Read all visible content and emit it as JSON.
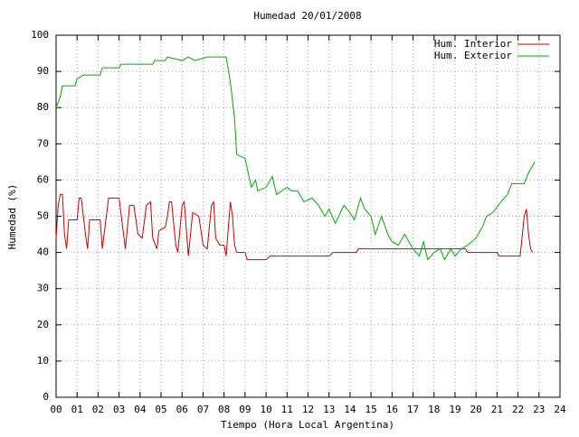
{
  "chart_data": {
    "type": "line",
    "title": "Humedad 20/01/2008",
    "x_label": "Tiempo (Hora Local Argentina)",
    "y_label": "Humedad (%)",
    "xlim": [
      0,
      24
    ],
    "ylim": [
      0,
      100
    ],
    "xticks": [
      {
        "value": 0,
        "label": "00"
      },
      {
        "value": 1,
        "label": "01"
      },
      {
        "value": 2,
        "label": "02"
      },
      {
        "value": 3,
        "label": "03"
      },
      {
        "value": 4,
        "label": "04"
      },
      {
        "value": 5,
        "label": "05"
      },
      {
        "value": 6,
        "label": "06"
      },
      {
        "value": 7,
        "label": "07"
      },
      {
        "value": 8,
        "label": "08"
      },
      {
        "value": 9,
        "label": "09"
      },
      10,
      11,
      12,
      13,
      14,
      15,
      16,
      17,
      18,
      19,
      20,
      21,
      22,
      23,
      24
    ],
    "yticks": [
      0,
      10,
      20,
      30,
      40,
      50,
      60,
      70,
      80,
      90,
      100
    ],
    "grid": true,
    "legend": "top-right",
    "series": [
      {
        "name": "Hum. Interior",
        "color": "#cc0000",
        "x": [
          0,
          0.1,
          0.2,
          0.3,
          0.4,
          0.5,
          0.6,
          1.0,
          1.1,
          1.2,
          1.4,
          1.5,
          1.6,
          2.1,
          2.2,
          2.5,
          3.0,
          3.3,
          3.5,
          3.7,
          3.9,
          4.1,
          4.3,
          4.5,
          4.6,
          4.8,
          4.9,
          5.2,
          5.3,
          5.4,
          5.5,
          5.7,
          5.8,
          6.0,
          6.1,
          6.3,
          6.5,
          6.8,
          7.0,
          7.2,
          7.4,
          7.5,
          7.6,
          7.8,
          8.0,
          8.1,
          8.3,
          8.4,
          8.5,
          8.6,
          9.0,
          9.1,
          10.0,
          10.2,
          13.0,
          13.2,
          14.3,
          14.4,
          19.5,
          19.6,
          21.0,
          21.1,
          22.1,
          22.3,
          22.4,
          22.5,
          22.6,
          22.7
        ],
        "values": [
          44,
          53,
          56,
          56,
          45,
          41,
          49,
          49,
          55,
          55,
          45,
          41,
          49,
          49,
          41,
          55,
          55,
          41,
          53,
          53,
          45,
          44,
          53,
          54,
          44,
          41,
          46,
          47,
          50,
          54,
          54,
          42,
          40,
          53,
          54,
          39,
          51,
          50,
          42,
          41,
          53,
          54,
          44,
          42,
          42,
          39,
          54,
          50,
          42,
          40,
          40,
          38,
          38,
          39,
          39,
          40,
          40,
          41,
          41,
          40,
          40,
          39,
          39,
          50,
          52,
          45,
          41,
          40
        ]
      },
      {
        "name": "Hum. Exterior",
        "color": "#00aa00",
        "x": [
          0,
          0.2,
          0.3,
          0.9,
          1.0,
          1.3,
          2.1,
          2.2,
          3.0,
          3.1,
          4.6,
          4.7,
          5.2,
          5.3,
          6.0,
          6.3,
          6.6,
          7.2,
          8.1,
          8.3,
          8.5,
          8.6,
          9.0,
          9.3,
          9.5,
          9.6,
          10.0,
          10.3,
          10.5,
          11.0,
          11.2,
          11.5,
          11.8,
          12.2,
          12.5,
          12.8,
          13.0,
          13.3,
          13.7,
          14.0,
          14.2,
          14.5,
          14.7,
          15.0,
          15.2,
          15.5,
          15.8,
          16.0,
          16.3,
          16.6,
          17.0,
          17.3,
          17.5,
          17.7,
          18.0,
          18.3,
          18.5,
          18.8,
          19.0,
          19.3,
          19.6,
          20.0,
          20.3,
          20.5,
          20.8,
          21.2,
          21.5,
          21.7,
          22.3,
          22.5,
          22.8
        ],
        "values": [
          80,
          83,
          86,
          86,
          88,
          89,
          89,
          91,
          91,
          92,
          92,
          93,
          93,
          94,
          93,
          94,
          93,
          94,
          94,
          87,
          77,
          67,
          66,
          58,
          60,
          57,
          58,
          61,
          56,
          58,
          57,
          57,
          54,
          55,
          53,
          50,
          52,
          48,
          53,
          51,
          49,
          55,
          52,
          50,
          45,
          50,
          45,
          43,
          42,
          45,
          41,
          39,
          43,
          38,
          40,
          41,
          38,
          41,
          39,
          41,
          42,
          44,
          47,
          50,
          51,
          54,
          56,
          59,
          59,
          62,
          65
        ]
      }
    ]
  }
}
